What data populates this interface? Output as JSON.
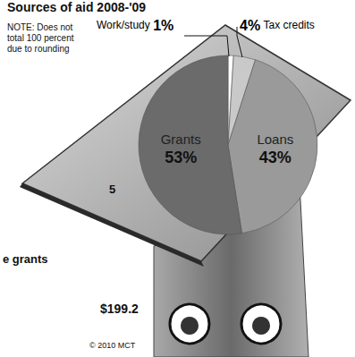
{
  "chart_data": {
    "type": "pie",
    "title": "Sources of aid 2008-'09",
    "note": "NOTE: Does not total 100 percent due to rounding",
    "categories": [
      "Work/study",
      "Tax credits",
      "Loans",
      "Grants"
    ],
    "values": [
      1,
      4,
      43,
      53
    ],
    "value_labels": [
      "1%",
      "4%",
      "43%",
      "53%"
    ],
    "colors": [
      "#ffffff",
      "#c9c9c9",
      "#9a9a9a",
      "#6b6b6b"
    ],
    "data_labels": true,
    "annotations": [
      "5",
      "e grants",
      "$199.2",
      "© 2010 MCT"
    ]
  }
}
